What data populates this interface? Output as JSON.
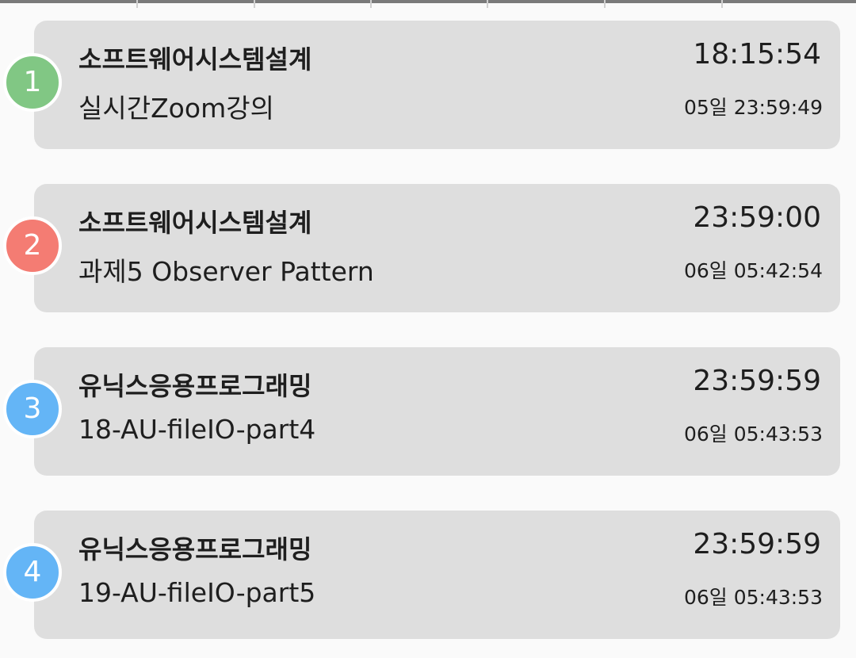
{
  "colors": {
    "green": "#81c784",
    "red": "#f47c73",
    "blue": "#64b5f6",
    "card": "#dedede"
  },
  "items": [
    {
      "index": "1",
      "course": "소프트웨어시스템설계",
      "task": "실시간Zoom강의",
      "time": "18:15:54",
      "due": "05일 23:59:49",
      "color": "#81c784"
    },
    {
      "index": "2",
      "course": "소프트웨어시스템설계",
      "task": "과제5 Observer Pattern",
      "time": "23:59:00",
      "due": "06일 05:42:54",
      "color": "#f47c73"
    },
    {
      "index": "3",
      "course": "유닉스응용프로그래밍",
      "task": "18-AU-fileIO-part4",
      "time": "23:59:59",
      "due": "06일 05:43:53",
      "color": "#64b5f6"
    },
    {
      "index": "4",
      "course": "유닉스응용프로그래밍",
      "task": "19-AU-fileIO-part5",
      "time": "23:59:59",
      "due": "06일 05:43:53",
      "color": "#64b5f6"
    }
  ]
}
